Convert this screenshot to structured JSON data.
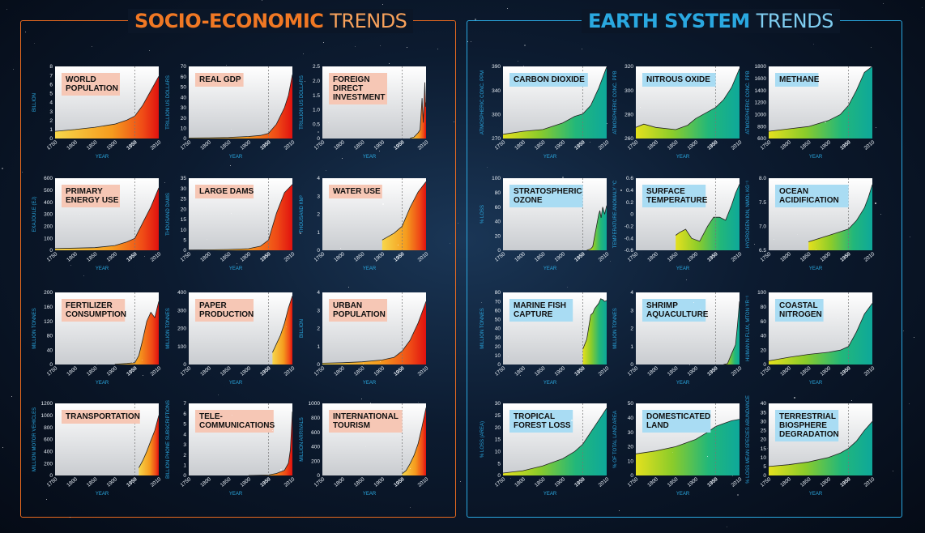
{
  "panels": {
    "socio_title_bold": "SOCIO-ECONOMIC",
    "socio_title_light": "TRENDS",
    "earth_title_bold": "EARTH SYSTEM",
    "earth_title_light": "TRENDS"
  },
  "colors": {
    "socio_border": "#e96a1f",
    "earth_border": "#2aa8e0",
    "socio_label_bg": "#f6c7b5",
    "earth_label_bg": "#a9dcf3",
    "highlight_year": "#ff2a1a"
  },
  "chart_data": [
    {
      "type": "area",
      "group": "socio",
      "label": [
        "WORLD",
        "POPULATION"
      ],
      "ylabel": "BILLION",
      "xlabel": "YEAR",
      "yticks": [
        "0",
        "1",
        "2",
        "3",
        "4",
        "5",
        "6",
        "7",
        "8"
      ],
      "ylim": [
        0,
        8
      ],
      "x": [
        1750,
        1800,
        1850,
        1900,
        1930,
        1950,
        1970,
        1990,
        2010
      ],
      "values": [
        0.8,
        1.0,
        1.25,
        1.6,
        2.05,
        2.5,
        3.7,
        5.3,
        6.9
      ]
    },
    {
      "type": "area",
      "group": "socio",
      "label": [
        "REAL GDP"
      ],
      "ylabel": "TRILLION US DOLLARS",
      "xlabel": "YEAR",
      "yticks": [
        "0",
        "10",
        "20",
        "30",
        "40",
        "50",
        "60",
        "70"
      ],
      "ylim": [
        0,
        70
      ],
      "x": [
        1750,
        1800,
        1850,
        1900,
        1930,
        1950,
        1970,
        1990,
        2000,
        2010
      ],
      "values": [
        0.5,
        0.7,
        1,
        2,
        3,
        5,
        14,
        30,
        42,
        62
      ]
    },
    {
      "type": "area",
      "group": "socio",
      "label": [
        "FOREIGN",
        "DIRECT",
        "INVESTMENT"
      ],
      "ylabel": "TRILLION US DOLLARS",
      "xlabel": "YEAR",
      "yticks": [
        "0",
        "0.5",
        "1.0",
        "1.5",
        "2.0",
        "2.5"
      ],
      "ylim": [
        0,
        2.5
      ],
      "x": [
        1970,
        1980,
        1990,
        1995,
        2000,
        2003,
        2007,
        2009,
        2010
      ],
      "values": [
        0.01,
        0.05,
        0.2,
        0.3,
        1.4,
        0.55,
        1.95,
        1.1,
        1.25
      ]
    },
    {
      "type": "area",
      "group": "socio",
      "label": [
        "PRIMARY",
        "ENERGY USE"
      ],
      "ylabel": "EXAJOULE (EJ)",
      "xlabel": "YEAR",
      "yticks": [
        "0",
        "100",
        "200",
        "300",
        "400",
        "500",
        "600"
      ],
      "ylim": [
        0,
        600
      ],
      "x": [
        1750,
        1800,
        1850,
        1900,
        1930,
        1950,
        1970,
        1990,
        2010
      ],
      "values": [
        15,
        18,
        22,
        40,
        70,
        100,
        230,
        360,
        520
      ]
    },
    {
      "type": "area",
      "group": "socio",
      "label": [
        "LARGE DAMS"
      ],
      "ylabel": "THOUSAND DAMS",
      "xlabel": "YEAR",
      "yticks": [
        "0",
        "5",
        "10",
        "15",
        "20",
        "25",
        "30",
        "35"
      ],
      "ylim": [
        0,
        35
      ],
      "x": [
        1750,
        1800,
        1850,
        1900,
        1930,
        1950,
        1970,
        1990,
        2010
      ],
      "values": [
        0.1,
        0.2,
        0.4,
        0.8,
        2,
        5,
        18,
        28,
        32
      ]
    },
    {
      "type": "area",
      "group": "socio",
      "label": [
        "WATER USE"
      ],
      "ylabel": "THOUSAND KM³",
      "xlabel": "YEAR",
      "yticks": [
        "0",
        "1",
        "2",
        "3",
        "4"
      ],
      "ylim": [
        0,
        4.2
      ],
      "x": [
        1900,
        1930,
        1950,
        1970,
        1990,
        2000,
        2010
      ],
      "values": [
        0.6,
        1.0,
        1.4,
        2.5,
        3.4,
        3.7,
        4.0
      ]
    },
    {
      "type": "area",
      "group": "socio",
      "label": [
        "FERTILIZER",
        "CONSUMPTION"
      ],
      "ylabel": "MILLION TONNES",
      "xlabel": "YEAR",
      "yticks": [
        "0",
        "40",
        "80",
        "120",
        "160",
        "200"
      ],
      "ylim": [
        0,
        200
      ],
      "x": [
        1900,
        1930,
        1950,
        1960,
        1970,
        1980,
        1990,
        2000,
        2010
      ],
      "values": [
        1,
        3,
        5,
        25,
        70,
        120,
        145,
        130,
        175
      ]
    },
    {
      "type": "area",
      "group": "socio",
      "label": [
        "PAPER",
        "PRODUCTION"
      ],
      "ylabel": "MILLION TONNES",
      "xlabel": "YEAR",
      "yticks": [
        "0",
        "100",
        "200",
        "300",
        "400"
      ],
      "ylim": [
        0,
        420
      ],
      "x": [
        1960,
        1970,
        1980,
        1990,
        2000,
        2010
      ],
      "values": [
        70,
        120,
        170,
        240,
        330,
        400
      ]
    },
    {
      "type": "area",
      "group": "socio",
      "label": [
        "URBAN",
        "POPULATION"
      ],
      "ylabel": "BILLION",
      "xlabel": "YEAR",
      "yticks": [
        "0",
        "1",
        "2",
        "3",
        "4"
      ],
      "ylim": [
        0,
        4
      ],
      "x": [
        1750,
        1800,
        1850,
        1900,
        1930,
        1950,
        1970,
        1990,
        2010
      ],
      "values": [
        0.07,
        0.1,
        0.15,
        0.25,
        0.4,
        0.75,
        1.35,
        2.3,
        3.5
      ]
    },
    {
      "type": "area",
      "group": "socio",
      "label": [
        "TRANSPORTATION"
      ],
      "ylabel": "MILLION MOTOR VEHICLES",
      "xlabel": "YEAR",
      "yticks": [
        "0",
        "200",
        "400",
        "600",
        "800",
        "1000",
        "1200"
      ],
      "ylim": [
        0,
        1200
      ],
      "x": [
        1960,
        1970,
        1980,
        1990,
        2000,
        2010
      ],
      "values": [
        130,
        250,
        400,
        580,
        750,
        1000
      ]
    },
    {
      "type": "area",
      "group": "socio",
      "label": [
        "TELE-",
        "COMMUNICATIONS"
      ],
      "ylabel": "BILLION PHONE SUBSCRIPTIONS",
      "xlabel": "YEAR",
      "yticks": [
        "0",
        "1",
        "2",
        "3",
        "4",
        "5",
        "6",
        "7"
      ],
      "ylim": [
        0,
        7
      ],
      "x": [
        1900,
        1950,
        1970,
        1990,
        2000,
        2005,
        2010
      ],
      "values": [
        0,
        0.05,
        0.2,
        0.5,
        1.2,
        2.5,
        6.2
      ]
    },
    {
      "type": "area",
      "group": "socio",
      "label": [
        "INTERNATIONAL",
        "TOURISM"
      ],
      "ylabel": "MILLION ARRIVALS",
      "xlabel": "YEAR",
      "yticks": [
        "0",
        "200",
        "400",
        "600",
        "800",
        "1000"
      ],
      "ylim": [
        0,
        1000
      ],
      "x": [
        1950,
        1960,
        1970,
        1980,
        1990,
        2000,
        2010
      ],
      "values": [
        25,
        70,
        165,
        280,
        440,
        680,
        940
      ]
    },
    {
      "type": "area",
      "group": "earth",
      "label": [
        "CARBON DIOXIDE"
      ],
      "ylabel": "ATMOSPHERIC CONC. PPM",
      "xlabel": "YEAR",
      "yticks": [
        "270",
        "300",
        "340",
        "390"
      ],
      "ylim": [
        270,
        390
      ],
      "x": [
        1750,
        1800,
        1850,
        1900,
        1930,
        1950,
        1970,
        1990,
        2010
      ],
      "values": [
        277,
        282,
        285,
        296,
        307,
        311,
        325,
        354,
        389
      ]
    },
    {
      "type": "area",
      "group": "earth",
      "label": [
        "NITROUS OXIDE"
      ],
      "ylabel": "ATMOSPHERIC CONC. PPB",
      "xlabel": "YEAR",
      "yticks": [
        "260",
        "280",
        "300",
        "320"
      ],
      "ylim": [
        260,
        325
      ],
      "x": [
        1750,
        1770,
        1800,
        1850,
        1880,
        1900,
        1950,
        1970,
        1990,
        2010
      ],
      "values": [
        270,
        273,
        270,
        268,
        272,
        278,
        288,
        295,
        306,
        323
      ]
    },
    {
      "type": "area",
      "group": "earth",
      "label": [
        "METHANE"
      ],
      "ylabel": "ATMOSPHERIC CONC. PPB",
      "xlabel": "YEAR",
      "yticks": [
        "600",
        "800",
        "1000",
        "1200",
        "1400",
        "1600",
        "1800"
      ],
      "ylim": [
        600,
        1800
      ],
      "x": [
        1750,
        1800,
        1850,
        1900,
        1930,
        1950,
        1970,
        1990,
        2010
      ],
      "values": [
        720,
        760,
        800,
        900,
        1000,
        1150,
        1400,
        1700,
        1800
      ]
    },
    {
      "type": "area",
      "group": "earth",
      "label": [
        "STRATOSPHERIC",
        "OZONE"
      ],
      "ylabel": "% LOSS",
      "xlabel": "YEAR",
      "yticks": [
        "0",
        "20",
        "40",
        "60",
        "80",
        "100"
      ],
      "ylim": [
        0,
        100
      ],
      "x": [
        1960,
        1970,
        1975,
        1980,
        1985,
        1990,
        1993,
        1996,
        2000,
        2005,
        2010
      ],
      "values": [
        0,
        2,
        5,
        20,
        35,
        50,
        55,
        45,
        60,
        50,
        62
      ]
    },
    {
      "type": "area",
      "group": "earth",
      "label": [
        "SURFACE",
        "TEMPERATURE"
      ],
      "ylabel": "TEMPERATURE ANOMALY °C",
      "xlabel": "YEAR",
      "yticks": [
        "-0.6",
        "-0.4",
        "-0.2",
        "0",
        "0.2",
        "0.4",
        "0.6"
      ],
      "ylim": [
        -0.6,
        0.6
      ],
      "x": [
        1850,
        1860,
        1875,
        1890,
        1910,
        1930,
        1945,
        1960,
        1975,
        1990,
        2000,
        2010
      ],
      "values": [
        -0.35,
        -0.3,
        -0.25,
        -0.4,
        -0.45,
        -0.2,
        -0.05,
        -0.05,
        -0.1,
        0.15,
        0.35,
        0.5
      ]
    },
    {
      "type": "area",
      "group": "earth",
      "label": [
        "OCEAN",
        "ACIDIFICATION"
      ],
      "ylabel": "HYDROGEN ION, NMOL KG⁻¹",
      "xlabel": "YEAR",
      "yticks": [
        "6.5",
        "7.0",
        "7.5",
        "8.0"
      ],
      "ylim": [
        6.5,
        8.2
      ],
      "x": [
        1850,
        1900,
        1950,
        1970,
        1990,
        2000,
        2010
      ],
      "values": [
        6.7,
        6.85,
        7.0,
        7.2,
        7.5,
        7.75,
        8.05
      ]
    },
    {
      "type": "area",
      "group": "earth",
      "label": [
        "MARINE FISH",
        "CAPTURE"
      ],
      "ylabel": "MILLION TONNES",
      "xlabel": "YEAR",
      "yticks": [
        "0",
        "10",
        "20",
        "30",
        "40",
        "50",
        "60",
        "70",
        "80"
      ],
      "ylim": [
        0,
        80
      ],
      "x": [
        1950,
        1960,
        1970,
        1975,
        1980,
        1990,
        1995,
        2000,
        2005,
        2010
      ],
      "values": [
        17,
        28,
        55,
        57,
        62,
        68,
        73,
        72,
        70,
        71
      ]
    },
    {
      "type": "area",
      "group": "earth",
      "label": [
        "SHRIMP",
        "AQUACULTURE"
      ],
      "ylabel": "MILLION TONNES",
      "xlabel": "YEAR",
      "yticks": [
        "0",
        "1",
        "2",
        "3",
        "4"
      ],
      "ylim": [
        0,
        4
      ],
      "x": [
        1970,
        1980,
        1990,
        2000,
        2005,
        2010
      ],
      "values": [
        0,
        0.05,
        0.6,
        1.1,
        2.2,
        3.5
      ]
    },
    {
      "type": "area",
      "group": "earth",
      "label": [
        "COASTAL",
        "NITROGEN"
      ],
      "ylabel": "HUMAN N FLUX, MTON YR⁻¹",
      "xlabel": "YEAR",
      "yticks": [
        "0",
        "20",
        "40",
        "60",
        "80",
        "100"
      ],
      "ylim": [
        0,
        100
      ],
      "x": [
        1750,
        1800,
        1850,
        1900,
        1930,
        1950,
        1970,
        1990,
        2010
      ],
      "values": [
        5,
        10,
        14,
        17,
        20,
        25,
        45,
        70,
        85
      ]
    },
    {
      "type": "area",
      "group": "earth",
      "label": [
        "TROPICAL",
        "FOREST LOSS"
      ],
      "ylabel": "% LOSS (AREA)",
      "xlabel": "YEAR",
      "yticks": [
        "0",
        "5",
        "10",
        "15",
        "20",
        "25",
        "30"
      ],
      "ylim": [
        0,
        30
      ],
      "x": [
        1750,
        1800,
        1850,
        1900,
        1930,
        1950,
        1970,
        1990,
        2010
      ],
      "values": [
        1,
        2,
        4,
        7,
        10,
        13,
        18,
        23,
        28
      ]
    },
    {
      "type": "area",
      "group": "earth",
      "label": [
        "DOMESTICATED",
        "LAND"
      ],
      "ylabel": "% OF TOTAL LAND AREA",
      "xlabel": "YEAR",
      "yticks": [
        "0",
        "10",
        "20",
        "30",
        "40",
        "50"
      ],
      "ylim": [
        0,
        50
      ],
      "x": [
        1750,
        1800,
        1850,
        1900,
        1930,
        1950,
        1970,
        1990,
        2010
      ],
      "values": [
        15,
        17,
        20,
        25,
        30,
        34,
        36,
        38,
        39
      ]
    },
    {
      "type": "area",
      "group": "earth",
      "label": [
        "TERRESTRIAL",
        "BIOSPHERE",
        "DEGRADATION"
      ],
      "ylabel": "% LOSS MEAN SPECIES ABUNDANCE",
      "xlabel": "YEAR",
      "yticks": [
        "0",
        "5",
        "10",
        "15",
        "20",
        "25",
        "30",
        "35",
        "40"
      ],
      "ylim": [
        0,
        40
      ],
      "x": [
        1750,
        1800,
        1850,
        1900,
        1930,
        1950,
        1970,
        1990,
        2010
      ],
      "values": [
        5,
        6,
        7.5,
        10,
        12.5,
        15,
        19,
        25,
        30
      ]
    }
  ],
  "x_axis": {
    "ticks": [
      "1750",
      "1800",
      "1850",
      "1900",
      "1950",
      "2010"
    ],
    "tick_values": [
      1750,
      1800,
      1850,
      1900,
      1950,
      2010
    ],
    "highlight_year": "1950",
    "range": [
      1750,
      2010
    ]
  }
}
